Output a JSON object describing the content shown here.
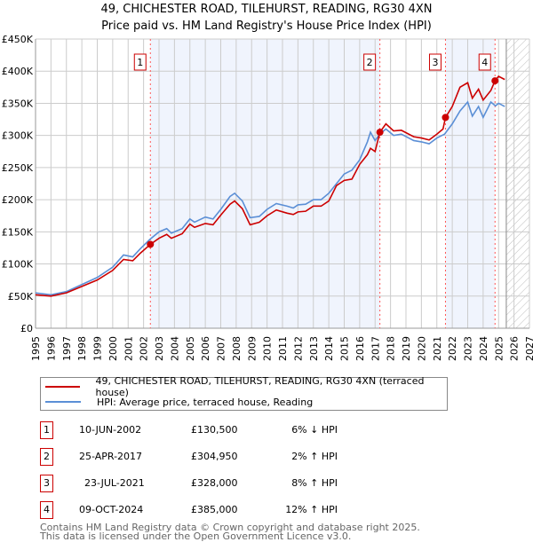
{
  "chart_data": {
    "type": "line",
    "title": "49, CHICHESTER ROAD, TILEHURST, READING, RG30 4XN",
    "subtitle": "Price paid vs. HM Land Registry's House Price Index (HPI)",
    "xlim": [
      1995,
      2027
    ],
    "ylim": [
      0,
      450000
    ],
    "x_ticks": [
      "1995",
      "1996",
      "1997",
      "1998",
      "1999",
      "2000",
      "2001",
      "2002",
      "2003",
      "2004",
      "2005",
      "2006",
      "2007",
      "2008",
      "2009",
      "2010",
      "2011",
      "2012",
      "2013",
      "2014",
      "2015",
      "2016",
      "2017",
      "2018",
      "2019",
      "2020",
      "2021",
      "2022",
      "2023",
      "2024",
      "2025",
      "2026",
      "2027"
    ],
    "y_ticks": [
      "£0",
      "£50K",
      "£100K",
      "£150K",
      "£200K",
      "£250K",
      "£300K",
      "£350K",
      "£400K",
      "£450K"
    ],
    "grid": true,
    "series": [
      {
        "name": "49, CHICHESTER ROAD, TILEHURST, READING, RG30 4XN (terraced house)",
        "color": "#cc0000",
        "x": [
          1995,
          1996,
          1997,
          1998,
          1999,
          2000,
          2000.7,
          2001.3,
          2001.8,
          2002.44,
          2003,
          2003.5,
          2003.8,
          2004.5,
          2005,
          2005.3,
          2006,
          2006.5,
          2007,
          2007.6,
          2007.9,
          2008.4,
          2008.9,
          2009.5,
          2010,
          2010.6,
          2011.3,
          2011.7,
          2012,
          2012.5,
          2013,
          2013.5,
          2014,
          2014.5,
          2015,
          2015.5,
          2016,
          2016.5,
          2016.7,
          2017,
          2017.31,
          2017.7,
          2018.2,
          2018.7,
          2019.5,
          2020,
          2020.5,
          2021,
          2021.4,
          2021.56,
          2022,
          2022.5,
          2023,
          2023.3,
          2023.7,
          2024,
          2024.5,
          2024.77,
          2025,
          2025.4
        ],
        "y": [
          52,
          50,
          55,
          65,
          75,
          90,
          107,
          105,
          117,
          130.5,
          140,
          146,
          140,
          147,
          162,
          157,
          163,
          161,
          176,
          193,
          198,
          186,
          161,
          165,
          175,
          184,
          179,
          177,
          181,
          182,
          190,
          190,
          198,
          222,
          230,
          232,
          255,
          270,
          280,
          275,
          304.95,
          318,
          307,
          308,
          298,
          296,
          293,
          302,
          310,
          328,
          345,
          375,
          382,
          358,
          372,
          355,
          370,
          385,
          392,
          387
        ]
      },
      {
        "name": "HPI: Average price, terraced house, Reading",
        "color": "#5b8fd6",
        "x": [
          1995,
          1996,
          1997,
          1998,
          1999,
          2000,
          2000.7,
          2001.3,
          2001.8,
          2002.4,
          2003,
          2003.5,
          2003.8,
          2004.5,
          2005,
          2005.3,
          2006,
          2006.5,
          2007,
          2007.6,
          2007.9,
          2008.4,
          2008.9,
          2009.5,
          2010,
          2010.6,
          2011.3,
          2011.7,
          2012,
          2012.5,
          2013,
          2013.5,
          2014,
          2014.5,
          2015,
          2015.5,
          2016,
          2016.5,
          2016.7,
          2017,
          2017.3,
          2017.7,
          2018.2,
          2018.7,
          2019.5,
          2020,
          2020.5,
          2021,
          2021.5,
          2022,
          2022.5,
          2023,
          2023.3,
          2023.7,
          2024,
          2024.5,
          2024.8,
          2025,
          2025.4
        ],
        "y": [
          55,
          52,
          57,
          68,
          79,
          95,
          114,
          111,
          124,
          138,
          150,
          155,
          148,
          155,
          170,
          165,
          173,
          170,
          185,
          205,
          210,
          198,
          172,
          174,
          185,
          194,
          190,
          187,
          192,
          193,
          200,
          200,
          210,
          225,
          240,
          246,
          262,
          290,
          305,
          292,
          302,
          310,
          300,
          302,
          292,
          290,
          287,
          296,
          302,
          318,
          338,
          352,
          330,
          345,
          328,
          352,
          346,
          350,
          345
        ]
      }
    ],
    "y_unit": "thousands GBP",
    "sales": [
      {
        "label": "1",
        "date": "10-JUN-2002",
        "x": 2002.44,
        "price": "£130,500",
        "value": 130.5,
        "hpi": "6% ↓ HPI"
      },
      {
        "label": "2",
        "date": "25-APR-2017",
        "x": 2017.31,
        "price": "£304,950",
        "value": 304.95,
        "hpi": "2% ↑ HPI"
      },
      {
        "label": "3",
        "date": "23-JUL-2021",
        "x": 2021.56,
        "price": "£328,000",
        "value": 328,
        "hpi": "8% ↑ HPI"
      },
      {
        "label": "4",
        "date": "09-OCT-2024",
        "x": 2024.77,
        "price": "£385,000",
        "value": 385,
        "hpi": "12% ↑ HPI"
      }
    ],
    "forecast_start": 2025.5
  },
  "footer": {
    "line1": "Contains HM Land Registry data © Crown copyright and database right 2025.",
    "line2": "This data is licensed under the Open Government Licence v3.0."
  }
}
